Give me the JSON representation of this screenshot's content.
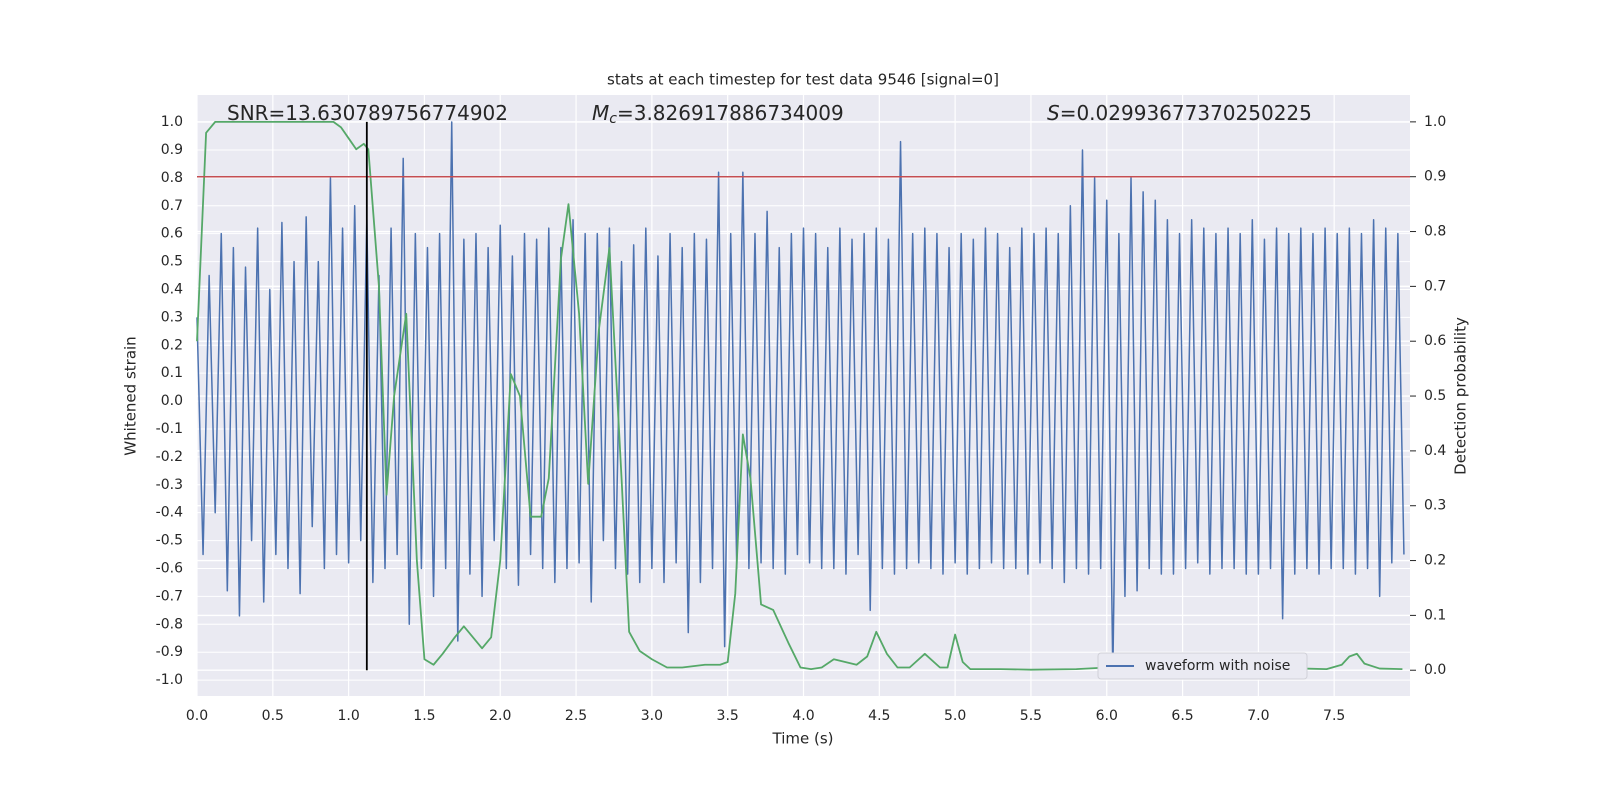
{
  "chart_data": {
    "type": "line",
    "title": "stats at each timestep for test data 9546 [signal=0]",
    "xlabel": "Time (s)",
    "ylabel": "Whitened strain",
    "y2label": "Detection probability",
    "annotations": [
      {
        "text": "SNR=13.630789756774902"
      },
      {
        "symbol": "M",
        "subscript": "c",
        "text": "=3.826917886734009"
      },
      {
        "symbol": "S",
        "text": "=0.02993677370250225"
      }
    ],
    "xlim": [
      0,
      8.0
    ],
    "ylim": [
      -1.057,
      1.097
    ],
    "y2lim": [
      -0.047,
      1.049
    ],
    "xticks": [
      {
        "value": 0,
        "label": "0.0"
      },
      0.5,
      {
        "value": 1,
        "label": "1.0"
      },
      1.5,
      {
        "value": 2,
        "label": "2.0"
      },
      2.5,
      {
        "value": 3,
        "label": "3.0"
      },
      3.5,
      {
        "value": 4,
        "label": "4.0"
      },
      4.5,
      {
        "value": 5,
        "label": "5.0"
      },
      5.5,
      {
        "value": 6,
        "label": "6.0"
      },
      6.5,
      {
        "value": 7,
        "label": "7.0"
      },
      7.5
    ],
    "yticks": [
      {
        "value": 1,
        "label": "1.0"
      },
      0.9,
      0.8,
      0.7,
      0.6,
      0.5,
      0.4,
      0.3,
      0.2,
      0.1,
      {
        "value": 0,
        "label": "0.0"
      },
      -0.1,
      -0.2,
      -0.3,
      -0.4,
      -0.5,
      -0.6,
      -0.7,
      -0.8,
      -0.9,
      {
        "value": -1,
        "label": "-1.0"
      }
    ],
    "y2ticks": [
      {
        "value": 1,
        "label": "1.0"
      },
      0.9,
      0.8,
      0.7,
      0.6,
      0.5,
      0.4,
      0.3,
      0.2,
      0.1,
      {
        "value": 0,
        "label": "0.0"
      }
    ],
    "grid": true,
    "legend": "lower right",
    "series": [
      {
        "name": "waveform with noise",
        "color": "#4c72b0",
        "x": [
          0,
          0.04,
          0.08,
          0.12,
          0.16,
          0.2,
          0.24,
          0.28,
          0.32,
          0.36,
          0.4,
          0.44,
          0.48,
          0.52,
          0.56,
          0.6,
          0.64,
          0.68,
          0.72,
          0.76,
          0.8,
          0.84,
          0.88,
          0.92,
          0.96,
          1,
          1.04,
          1.08,
          1.12,
          1.16,
          1.2,
          1.24,
          1.28,
          1.32,
          1.36,
          1.4,
          1.44,
          1.48,
          1.52,
          1.56,
          1.6,
          1.64,
          1.68,
          1.72,
          1.76,
          1.8,
          1.84,
          1.88,
          1.92,
          1.96,
          2,
          2.04,
          2.08,
          2.12,
          2.16,
          2.2,
          2.24,
          2.28,
          2.32,
          2.36,
          2.4,
          2.44,
          2.48,
          2.52,
          2.56,
          2.6,
          2.64,
          2.68,
          2.72,
          2.76,
          2.8,
          2.84,
          2.88,
          2.92,
          2.96,
          3,
          3.04,
          3.08,
          3.12,
          3.16,
          3.2,
          3.24,
          3.28,
          3.32,
          3.36,
          3.4,
          3.44,
          3.48,
          3.52,
          3.56,
          3.6,
          3.64,
          3.68,
          3.72,
          3.76,
          3.8,
          3.84,
          3.88,
          3.92,
          3.96,
          4,
          4.04,
          4.08,
          4.12,
          4.16,
          4.2,
          4.24,
          4.28,
          4.32,
          4.36,
          4.4,
          4.44,
          4.48,
          4.52,
          4.56,
          4.6,
          4.64,
          4.68,
          4.72,
          4.76,
          4.8,
          4.84,
          4.88,
          4.92,
          4.96,
          5,
          5.04,
          5.08,
          5.12,
          5.16,
          5.2,
          5.24,
          5.28,
          5.32,
          5.36,
          5.4,
          5.44,
          5.48,
          5.52,
          5.56,
          5.6,
          5.64,
          5.68,
          5.72,
          5.76,
          5.8,
          5.84,
          5.88,
          5.92,
          5.96,
          6,
          6.04,
          6.08,
          6.12,
          6.16,
          6.2,
          6.24,
          6.28,
          6.32,
          6.36,
          6.4,
          6.44,
          6.48,
          6.52,
          6.56,
          6.6,
          6.64,
          6.68,
          6.72,
          6.76,
          6.8,
          6.84,
          6.88,
          6.92,
          6.96,
          7,
          7.04,
          7.08,
          7.12,
          7.16,
          7.2,
          7.24,
          7.28,
          7.32,
          7.36,
          7.4,
          7.44,
          7.48,
          7.52,
          7.56,
          7.6,
          7.64,
          7.68,
          7.72,
          7.76,
          7.8,
          7.84,
          7.88,
          7.92,
          7.96
        ],
        "values": [
          0.3,
          -0.55,
          0.45,
          -0.4,
          0.6,
          -0.68,
          0.55,
          -0.77,
          0.48,
          -0.5,
          0.62,
          -0.72,
          0.4,
          -0.55,
          0.64,
          -0.6,
          0.5,
          -0.69,
          0.66,
          -0.45,
          0.5,
          -0.6,
          0.8,
          -0.55,
          0.62,
          -0.58,
          0.7,
          -0.5,
          0.65,
          -0.65,
          0.45,
          -0.6,
          0.62,
          -0.55,
          0.87,
          -0.8,
          0.6,
          -0.6,
          0.55,
          -0.7,
          0.6,
          -0.6,
          1.0,
          -0.86,
          0.58,
          -0.62,
          0.6,
          -0.7,
          0.55,
          -0.5,
          0.63,
          -0.6,
          0.52,
          -0.66,
          0.6,
          -0.55,
          0.58,
          -0.6,
          0.62,
          -0.65,
          0.55,
          -0.6,
          0.65,
          -0.58,
          0.6,
          -0.72,
          0.6,
          -0.5,
          0.62,
          -0.6,
          0.5,
          -0.62,
          0.56,
          -0.65,
          0.62,
          -0.6,
          0.52,
          -0.65,
          0.6,
          -0.58,
          0.55,
          -0.83,
          0.6,
          -0.65,
          0.58,
          -0.6,
          0.82,
          -0.88,
          0.6,
          -0.6,
          0.82,
          -0.6,
          0.6,
          -0.58,
          0.68,
          -0.6,
          0.55,
          -0.62,
          0.6,
          -0.55,
          0.62,
          -0.58,
          0.6,
          -0.6,
          0.55,
          -0.6,
          0.62,
          -0.62,
          0.58,
          -0.55,
          0.6,
          -0.75,
          0.62,
          -0.6,
          0.58,
          -0.62,
          0.93,
          -0.6,
          0.6,
          -0.58,
          0.62,
          -0.6,
          0.6,
          -0.62,
          0.55,
          -0.58,
          0.6,
          -0.62,
          0.58,
          -0.6,
          0.62,
          -0.58,
          0.6,
          -0.6,
          0.55,
          -0.6,
          0.62,
          -0.62,
          0.6,
          -0.58,
          0.62,
          -0.6,
          0.6,
          -0.65,
          0.7,
          -0.6,
          0.9,
          -0.62,
          0.8,
          -0.6,
          0.72,
          -0.98,
          0.6,
          -0.7,
          0.8,
          -0.68,
          0.75,
          -0.6,
          0.72,
          -0.62,
          0.65,
          -0.62,
          0.6,
          -0.6,
          0.65,
          -0.58,
          0.62,
          -0.62,
          0.6,
          -0.6,
          0.62,
          -0.6,
          0.6,
          -0.62,
          0.65,
          -0.62,
          0.58,
          -0.6,
          0.62,
          -0.78,
          0.6,
          -0.62,
          0.62,
          -0.6,
          0.6,
          -0.62,
          0.62,
          -0.6,
          0.6,
          -0.6,
          0.62,
          -0.62,
          0.6,
          -0.6,
          0.65,
          -0.7,
          0.62,
          -0.58,
          0.6,
          -0.55
        ]
      },
      {
        "color": "#55a868",
        "axis": "y2",
        "x": [
          0,
          0.06,
          0.12,
          0.3,
          0.6,
          0.9,
          0.95,
          1.0,
          1.05,
          1.1,
          1.13,
          1.2,
          1.25,
          1.3,
          1.38,
          1.45,
          1.5,
          1.56,
          1.62,
          1.7,
          1.76,
          1.88,
          1.94,
          2.0,
          2.07,
          2.13,
          2.2,
          2.27,
          2.32,
          2.4,
          2.45,
          2.52,
          2.58,
          2.65,
          2.72,
          2.8,
          2.85,
          2.92,
          3.0,
          3.1,
          3.2,
          3.35,
          3.45,
          3.5,
          3.55,
          3.6,
          3.65,
          3.72,
          3.8,
          3.9,
          3.98,
          4.05,
          4.12,
          4.2,
          4.35,
          4.42,
          4.48,
          4.55,
          4.62,
          4.7,
          4.8,
          4.9,
          4.95,
          5.0,
          5.05,
          5.1,
          5.3,
          5.5,
          5.8,
          6.0,
          6.08,
          6.2,
          6.3,
          6.35,
          6.42,
          6.5,
          6.75,
          7.0,
          7.3,
          7.45,
          7.55,
          7.6,
          7.65,
          7.7,
          7.8,
          7.95
        ],
        "values": [
          0.6,
          0.98,
          1.0,
          1.0,
          1.0,
          1.0,
          0.99,
          0.97,
          0.95,
          0.96,
          0.95,
          0.7,
          0.32,
          0.5,
          0.65,
          0.2,
          0.02,
          0.01,
          0.03,
          0.06,
          0.08,
          0.04,
          0.06,
          0.2,
          0.54,
          0.5,
          0.28,
          0.28,
          0.35,
          0.75,
          0.85,
          0.65,
          0.34,
          0.62,
          0.77,
          0.35,
          0.07,
          0.035,
          0.02,
          0.005,
          0.005,
          0.01,
          0.01,
          0.015,
          0.14,
          0.43,
          0.35,
          0.12,
          0.11,
          0.05,
          0.005,
          0.002,
          0.005,
          0.02,
          0.01,
          0.025,
          0.07,
          0.03,
          0.005,
          0.005,
          0.03,
          0.005,
          0.005,
          0.065,
          0.015,
          0.002,
          0.002,
          0.001,
          0.002,
          0.005,
          0.02,
          0.02,
          0.03,
          0.025,
          0.005,
          0.002,
          0.002,
          0.003,
          0.003,
          0.002,
          0.01,
          0.025,
          0.03,
          0.012,
          0.003,
          0.002
        ]
      }
    ],
    "hlines": [
      {
        "y2": 0.9,
        "color": "#c44e52"
      }
    ],
    "vlines": [
      {
        "x": 1.12,
        "y2": [
          0,
          1
        ],
        "color": "#000000"
      }
    ]
  }
}
